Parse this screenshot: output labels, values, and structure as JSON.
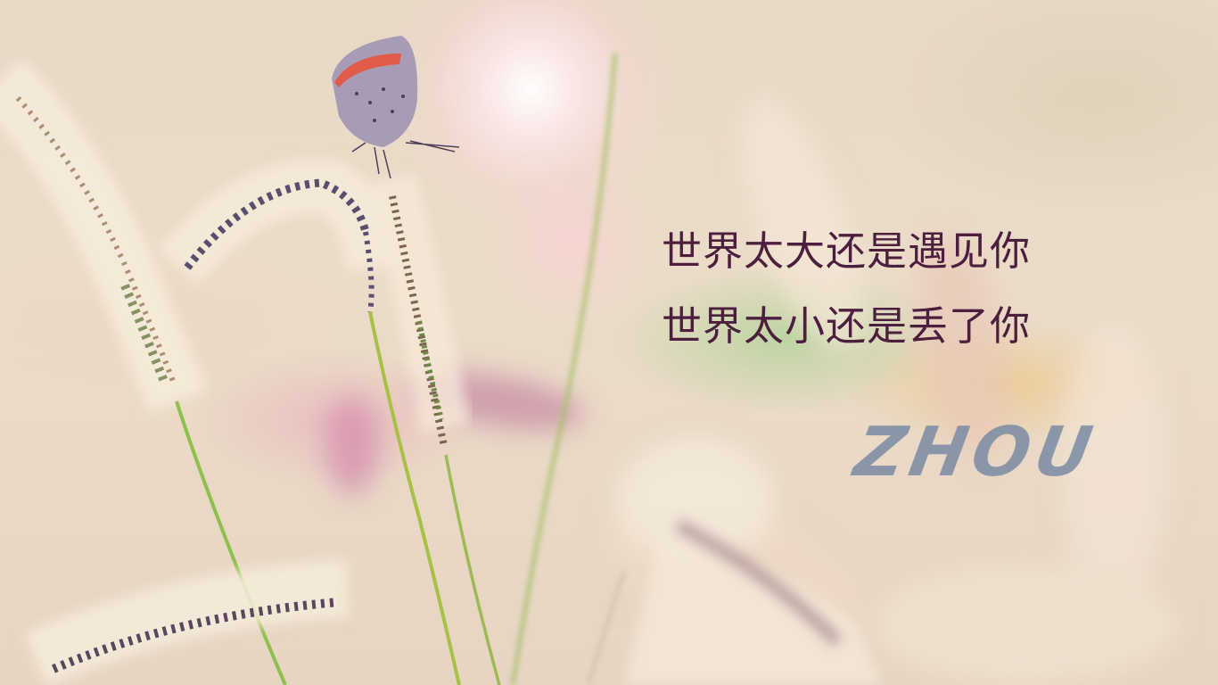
{
  "quote": {
    "line1": "世界太大还是遇见你",
    "line2": "世界太小还是丢了你"
  },
  "signature": "ZHOU",
  "colors": {
    "quote_text": "#4b1f3d",
    "signature_text": "#7d8da4",
    "background": "#e9d6c4"
  }
}
